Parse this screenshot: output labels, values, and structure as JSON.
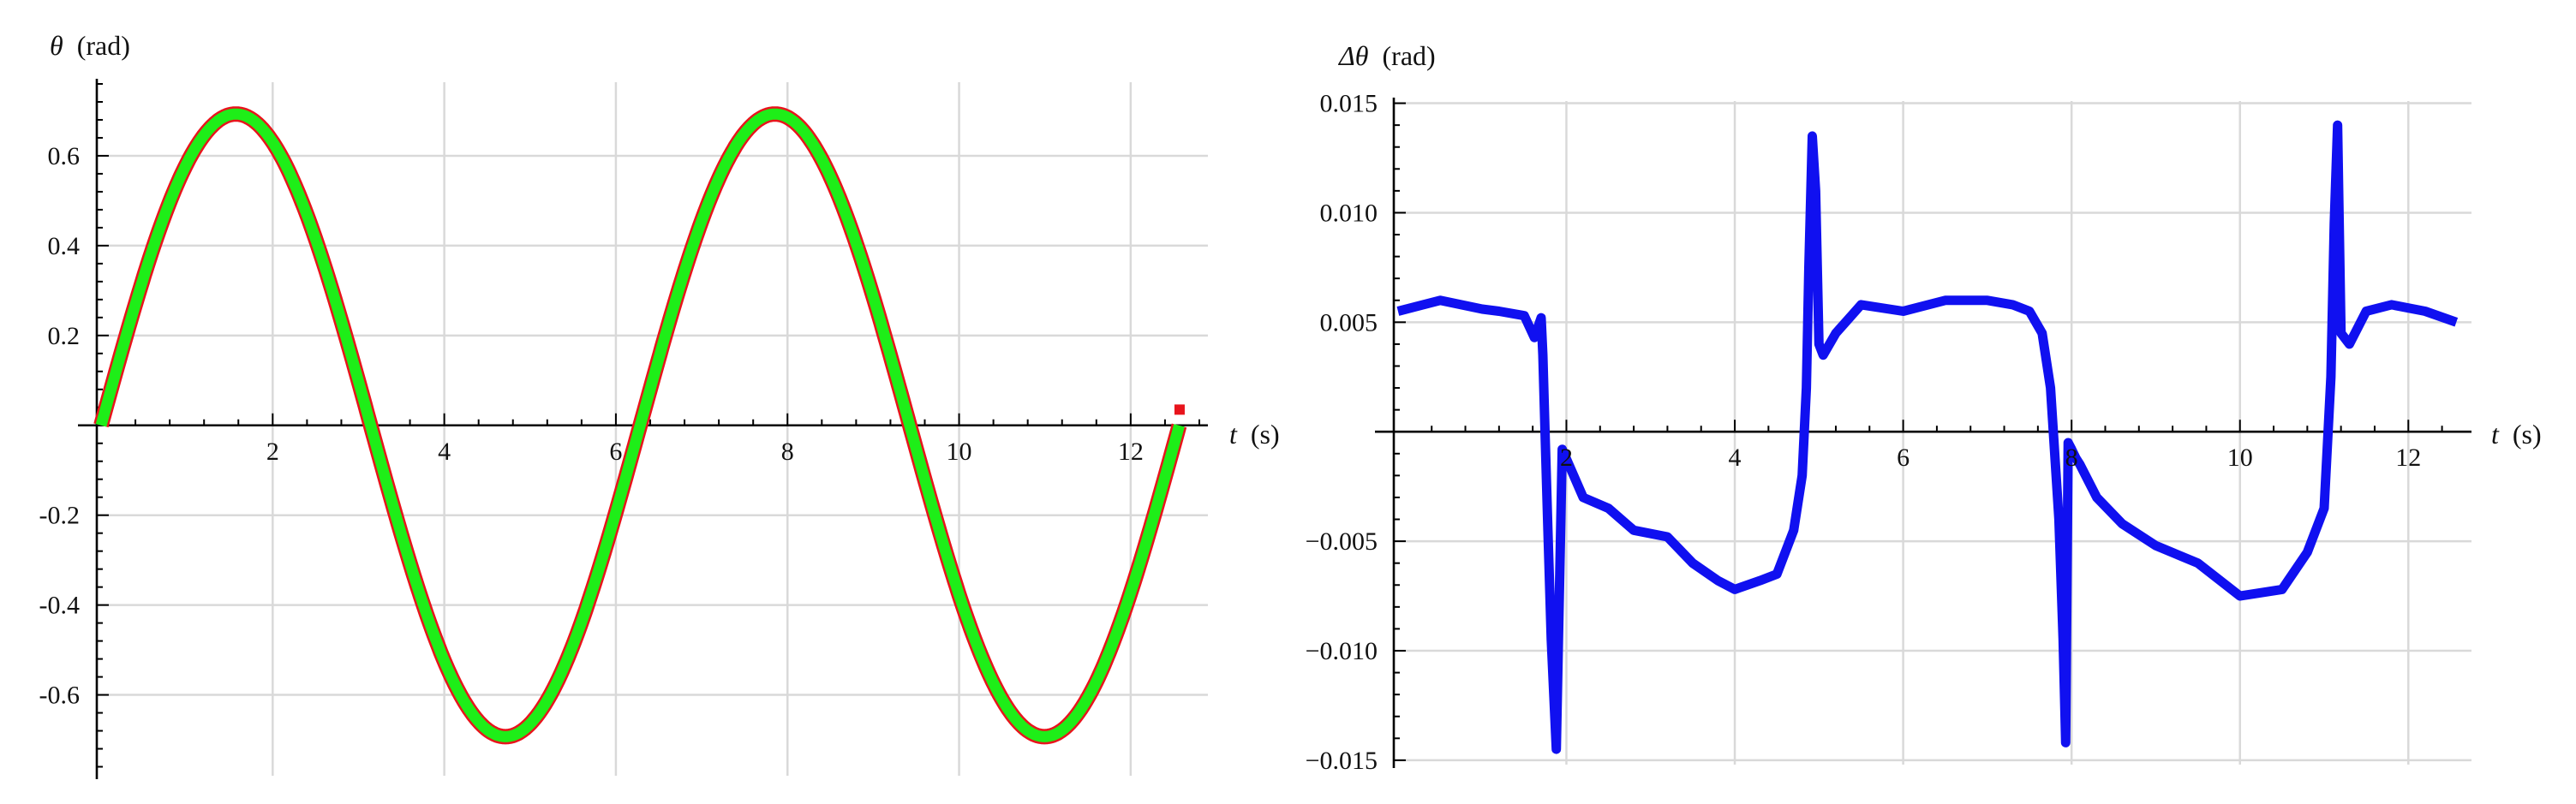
{
  "chart_data": [
    {
      "type": "line",
      "ylabel_symbol": "θ",
      "ylabel_unit": "(rad)",
      "xlabel_symbol": "t",
      "xlabel_unit": "(s)",
      "xlim": [
        -0.05,
        12.9
      ],
      "ylim": [
        -0.78,
        0.76
      ],
      "x_ticks": [
        2,
        4,
        6,
        8,
        10,
        12
      ],
      "x_tick_labels": [
        "2",
        "4",
        "6",
        "8",
        "10",
        "12"
      ],
      "y_ticks": [
        -0.6,
        -0.4,
        -0.2,
        0.2,
        0.4,
        0.6
      ],
      "y_tick_labels": [
        "-0.6",
        "-0.4",
        "-0.2",
        "0.2",
        "0.4",
        "0.6"
      ],
      "grid": true,
      "series": [
        {
          "color": "#e8141c",
          "function": "0.693*sin(x)",
          "x_range": [
            0,
            12.566
          ],
          "end_marker": [
            12.57,
            0.035
          ]
        },
        {
          "color": "#1eee18",
          "function": "0.693*sin(x)",
          "x_range": [
            0,
            12.566
          ]
        }
      ]
    },
    {
      "type": "line",
      "ylabel_symbol": "Δθ",
      "ylabel_unit": "(rad)",
      "xlabel_symbol": "t",
      "xlabel_unit": "(s)",
      "xlim": [
        -0.05,
        12.75
      ],
      "ylim": [
        -0.0152,
        0.0151
      ],
      "x_ticks": [
        2,
        4,
        6,
        8,
        10,
        12
      ],
      "x_tick_labels": [
        "2",
        "4",
        "6",
        "8",
        "10",
        "12"
      ],
      "y_ticks": [
        -0.015,
        -0.01,
        -0.005,
        0.005,
        0.01,
        0.015
      ],
      "y_tick_labels": [
        "−0.015",
        "−0.010",
        "−0.005",
        "0.005",
        "0.010",
        "0.015"
      ],
      "grid": true,
      "series": [
        {
          "color": "#1010f0",
          "x": [
            0,
            0.5,
            1.0,
            1.2,
            1.5,
            1.62,
            1.7,
            1.72,
            1.75,
            1.78,
            1.82,
            1.88,
            1.95,
            2.2,
            2.5,
            2.8,
            3.2,
            3.5,
            3.8,
            4.0,
            4.3,
            4.5,
            4.7,
            4.8,
            4.85,
            4.88,
            4.92,
            4.96,
            5.0,
            5.05,
            5.2,
            5.5,
            6.0,
            6.5,
            7.0,
            7.3,
            7.5,
            7.65,
            7.75,
            7.85,
            7.9,
            7.93,
            7.96,
            8.0,
            8.05,
            8.1,
            8.3,
            8.6,
            9.0,
            9.5,
            10.0,
            10.5,
            10.8,
            11.0,
            11.08,
            11.12,
            11.16,
            11.2,
            11.3,
            11.5,
            11.8,
            12.2,
            12.57
          ],
          "y": [
            0.0055,
            0.006,
            0.0056,
            0.0055,
            0.0053,
            0.0043,
            0.0052,
            0.0035,
            -0.0005,
            -0.0045,
            -0.0095,
            -0.0145,
            -0.0008,
            -0.003,
            -0.0035,
            -0.0045,
            -0.0048,
            -0.006,
            -0.0068,
            -0.0072,
            -0.0068,
            -0.0065,
            -0.0045,
            -0.002,
            0.002,
            0.0075,
            0.0135,
            0.011,
            0.004,
            0.0035,
            0.0045,
            0.0058,
            0.0055,
            0.006,
            0.006,
            0.0058,
            0.0055,
            0.0045,
            0.002,
            -0.004,
            -0.0095,
            -0.0142,
            -0.0005,
            -0.0008,
            -0.0012,
            -0.0015,
            -0.003,
            -0.0042,
            -0.0052,
            -0.006,
            -0.0075,
            -0.0072,
            -0.0055,
            -0.0035,
            0.0025,
            0.0095,
            0.014,
            0.0045,
            0.004,
            0.0055,
            0.0058,
            0.0055,
            0.005
          ]
        }
      ]
    }
  ]
}
